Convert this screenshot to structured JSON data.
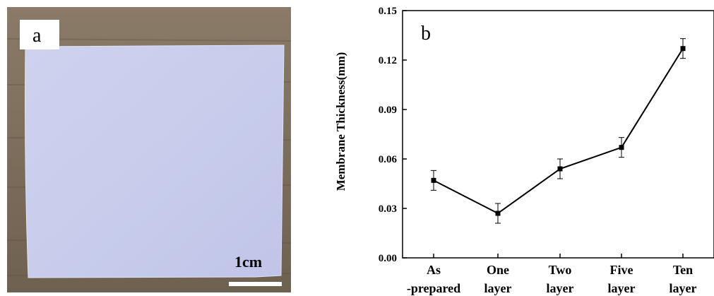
{
  "panel_a": {
    "label": "a",
    "scale_bar_label": "1cm"
  },
  "chart_data": {
    "type": "line",
    "panel_label": "b",
    "title": "",
    "xlabel": "",
    "ylabel": "Membrane Thickness(mm)",
    "categories": [
      [
        "As",
        "-prepared"
      ],
      [
        "One",
        "layer"
      ],
      [
        "Two",
        "layer"
      ],
      [
        "Five",
        "layer"
      ],
      [
        "Ten",
        "layer"
      ]
    ],
    "values": [
      0.047,
      0.027,
      0.054,
      0.067,
      0.127
    ],
    "errors": [
      0.006,
      0.006,
      0.006,
      0.006,
      0.006
    ],
    "ylim": [
      0.0,
      0.15
    ],
    "yticks": [
      "0.00",
      "0.03",
      "0.06",
      "0.09",
      "0.12",
      "0.15"
    ],
    "grid": false,
    "colors": {
      "line": "#000000",
      "marker": "#000000"
    }
  }
}
